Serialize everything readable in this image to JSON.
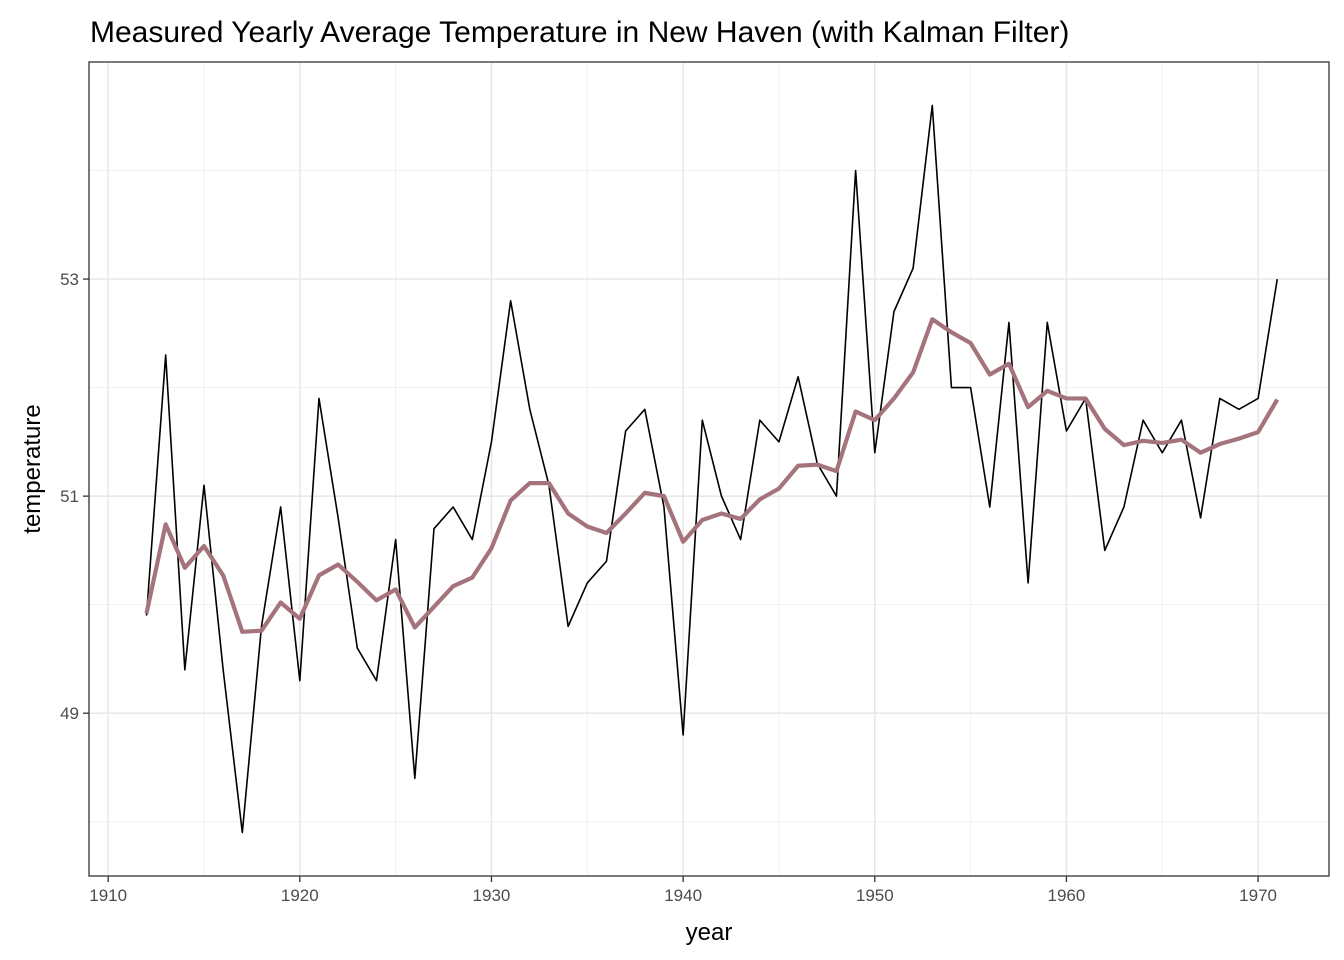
{
  "chart_data": {
    "type": "line",
    "title": "Measured Yearly Average Temperature in New Haven (with Kalman Filter)",
    "xlabel": "year",
    "ylabel": "temperature",
    "xlim": [
      1909,
      1973.7
    ],
    "ylim": [
      47.5,
      55.0
    ],
    "x_ticks": [
      1910,
      1920,
      1930,
      1940,
      1950,
      1960,
      1970
    ],
    "x_tick_labels": [
      "1910",
      "1920",
      "1930",
      "1940",
      "1950",
      "1960",
      "1970"
    ],
    "y_ticks": [
      49,
      51,
      53
    ],
    "y_tick_labels": [
      "49",
      "51",
      "53"
    ],
    "grid": true,
    "legend": "none",
    "x": [
      1912,
      1913,
      1914,
      1915,
      1916,
      1917,
      1918,
      1919,
      1920,
      1921,
      1922,
      1923,
      1924,
      1925,
      1926,
      1927,
      1928,
      1929,
      1930,
      1931,
      1932,
      1933,
      1934,
      1935,
      1936,
      1937,
      1938,
      1939,
      1940,
      1941,
      1942,
      1943,
      1944,
      1945,
      1946,
      1947,
      1948,
      1949,
      1950,
      1951,
      1952,
      1953,
      1954,
      1955,
      1956,
      1957,
      1958,
      1959,
      1960,
      1961,
      1962,
      1963,
      1964,
      1965,
      1966,
      1967,
      1968,
      1969,
      1970,
      1971
    ],
    "series": [
      {
        "color": "#000000",
        "values": [
          49.9,
          52.3,
          49.4,
          51.1,
          49.4,
          47.9,
          49.8,
          50.9,
          49.3,
          51.9,
          50.8,
          49.6,
          49.3,
          50.6,
          48.4,
          50.7,
          50.9,
          50.6,
          51.5,
          52.8,
          51.8,
          51.1,
          49.8,
          50.2,
          50.4,
          51.6,
          51.8,
          50.9,
          48.8,
          51.7,
          51.0,
          50.6,
          51.7,
          51.5,
          52.1,
          51.3,
          51.0,
          54.0,
          51.4,
          52.7,
          53.1,
          54.6,
          52.0,
          52.0,
          50.9,
          52.6,
          50.2,
          52.6,
          51.6,
          51.9,
          50.5,
          50.9,
          51.7,
          51.4,
          51.7,
          50.8,
          51.9,
          51.8,
          51.9,
          53.0
        ]
      },
      {
        "color": "#a5737c",
        "values": [
          49.92,
          50.74,
          50.34,
          50.54,
          50.27,
          49.75,
          49.76,
          50.02,
          49.87,
          50.27,
          50.37,
          50.21,
          50.04,
          50.14,
          49.79,
          49.98,
          50.17,
          50.25,
          50.52,
          50.96,
          51.12,
          51.12,
          50.84,
          50.72,
          50.66,
          50.84,
          51.03,
          51.0,
          50.58,
          50.78,
          50.84,
          50.79,
          50.97,
          51.07,
          51.28,
          51.29,
          51.23,
          51.78,
          51.7,
          51.9,
          52.14,
          52.63,
          52.51,
          52.41,
          52.12,
          52.22,
          51.82,
          51.97,
          51.9,
          51.9,
          51.62,
          51.47,
          51.51,
          51.49,
          51.52,
          51.4,
          51.48,
          51.53,
          51.59,
          51.89
        ]
      }
    ]
  }
}
